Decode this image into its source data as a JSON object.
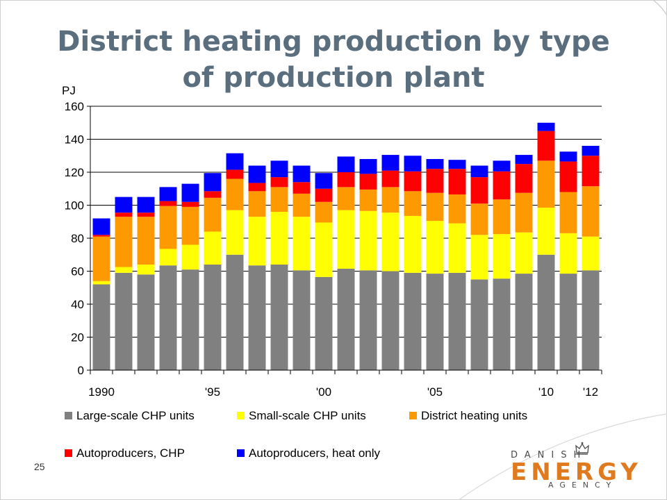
{
  "slide": {
    "title_line1": "District heating production by type",
    "title_line2": "of production plant",
    "page_number": "25"
  },
  "logo": {
    "top_text": "DANISH",
    "main_text": "ENERGY",
    "bottom_text": "AGENCY",
    "icon": "crown-icon"
  },
  "chart_data": {
    "type": "bar",
    "stacked": true,
    "ylabel": "PJ",
    "ylim": [
      0,
      160
    ],
    "yticks": [
      0,
      20,
      40,
      60,
      80,
      100,
      120,
      140,
      160
    ],
    "grid": true,
    "legend_position": "bottom",
    "categories": [
      "1990",
      "1991",
      "1992",
      "1993",
      "1994",
      "1995",
      "1996",
      "1997",
      "1998",
      "1999",
      "2000",
      "2001",
      "2002",
      "2003",
      "2004",
      "2005",
      "2006",
      "2007",
      "2008",
      "2009",
      "2010",
      "2011",
      "2012"
    ],
    "x_tick_labels": [
      "1990",
      "",
      "",
      "",
      "",
      "'95",
      "",
      "",
      "",
      "",
      "'00",
      "",
      "",
      "",
      "",
      "'05",
      "",
      "",
      "",
      "",
      "'10",
      "",
      "'12"
    ],
    "series": [
      {
        "name": "Large-scale CHP units",
        "color": "#808080",
        "values": [
          52,
          59,
          58,
          63.5,
          61,
          64,
          70,
          63.5,
          64,
          60.5,
          56.5,
          61.5,
          60.5,
          60,
          59,
          58.5,
          59,
          55,
          55.5,
          58.5,
          70,
          58.5,
          60.5
        ]
      },
      {
        "name": "Small-scale CHP units",
        "color": "#ffff00",
        "values": [
          2,
          3.5,
          6,
          10,
          15,
          20,
          27,
          29.5,
          32,
          32.5,
          33,
          35.5,
          36,
          35.5,
          34.5,
          32,
          30,
          27,
          27,
          25,
          28.5,
          24.5,
          20.5
        ]
      },
      {
        "name": "District heating units",
        "color": "#ff9900",
        "values": [
          27,
          30.5,
          29,
          26,
          23,
          20.5,
          19,
          15.5,
          15,
          14,
          12.5,
          14,
          13,
          15.5,
          15,
          17,
          17.5,
          19,
          21,
          24,
          28.5,
          25,
          30.5
        ]
      },
      {
        "name": "Autoproducers, CHP",
        "color": "#ff0000",
        "values": [
          1,
          2.5,
          2.5,
          3,
          3,
          4,
          5.5,
          5,
          6,
          7,
          8,
          9,
          9.5,
          10,
          12,
          14.5,
          15.5,
          16,
          17,
          17.5,
          18,
          18.5,
          18.5
        ]
      },
      {
        "name": "Autoproducers, heat only",
        "color": "#0000ff",
        "values": [
          10,
          9.5,
          9.5,
          8.5,
          11,
          11,
          10,
          10.5,
          10,
          10,
          9.5,
          9.5,
          9,
          9.5,
          9.5,
          6,
          5.5,
          7,
          6.5,
          5.5,
          5,
          6,
          6
        ]
      }
    ]
  }
}
